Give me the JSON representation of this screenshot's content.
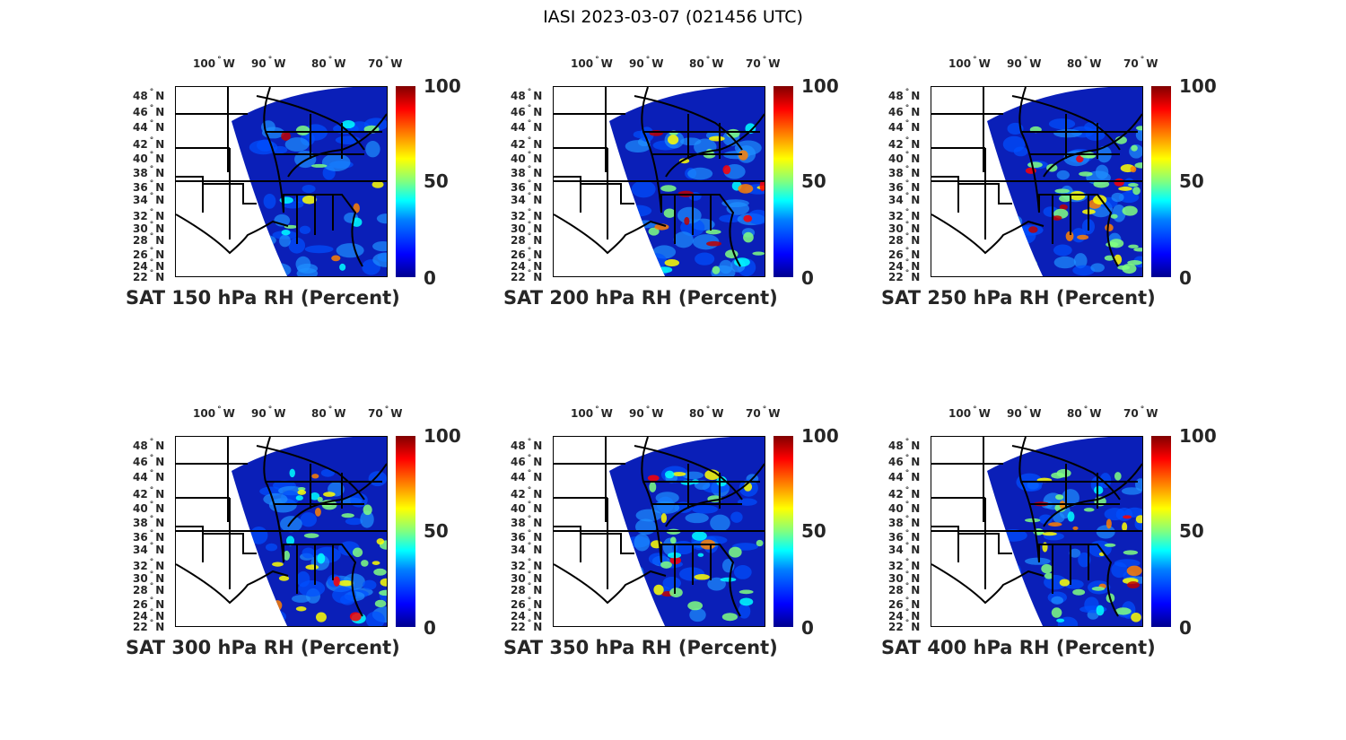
{
  "title": "IASI 2023-03-07 (021456 UTC)",
  "lon_labels": [
    "100",
    "90",
    "80",
    "70"
  ],
  "lon_suffix": "W",
  "lat_labels": [
    "48",
    "46",
    "44",
    "42",
    "40",
    "38",
    "36",
    "34",
    "32",
    "30",
    "28",
    "26",
    "24",
    "22"
  ],
  "lat_suffix": "N",
  "colorbar": {
    "min": "0",
    "mid": "50",
    "max": "100"
  },
  "panels": [
    {
      "title": "SAT 150 hPa RH (Percent)",
      "moisture": 0.15
    },
    {
      "title": "SAT 200 hPa RH (Percent)",
      "moisture": 0.35
    },
    {
      "title": "SAT 250 hPa RH (Percent)",
      "moisture": 0.5
    },
    {
      "title": "SAT 300 hPa RH (Percent)",
      "moisture": 0.4
    },
    {
      "title": "SAT 350 hPa RH (Percent)",
      "moisture": 0.35
    },
    {
      "title": "SAT 400 hPa RH (Percent)",
      "moisture": 0.45
    }
  ]
}
